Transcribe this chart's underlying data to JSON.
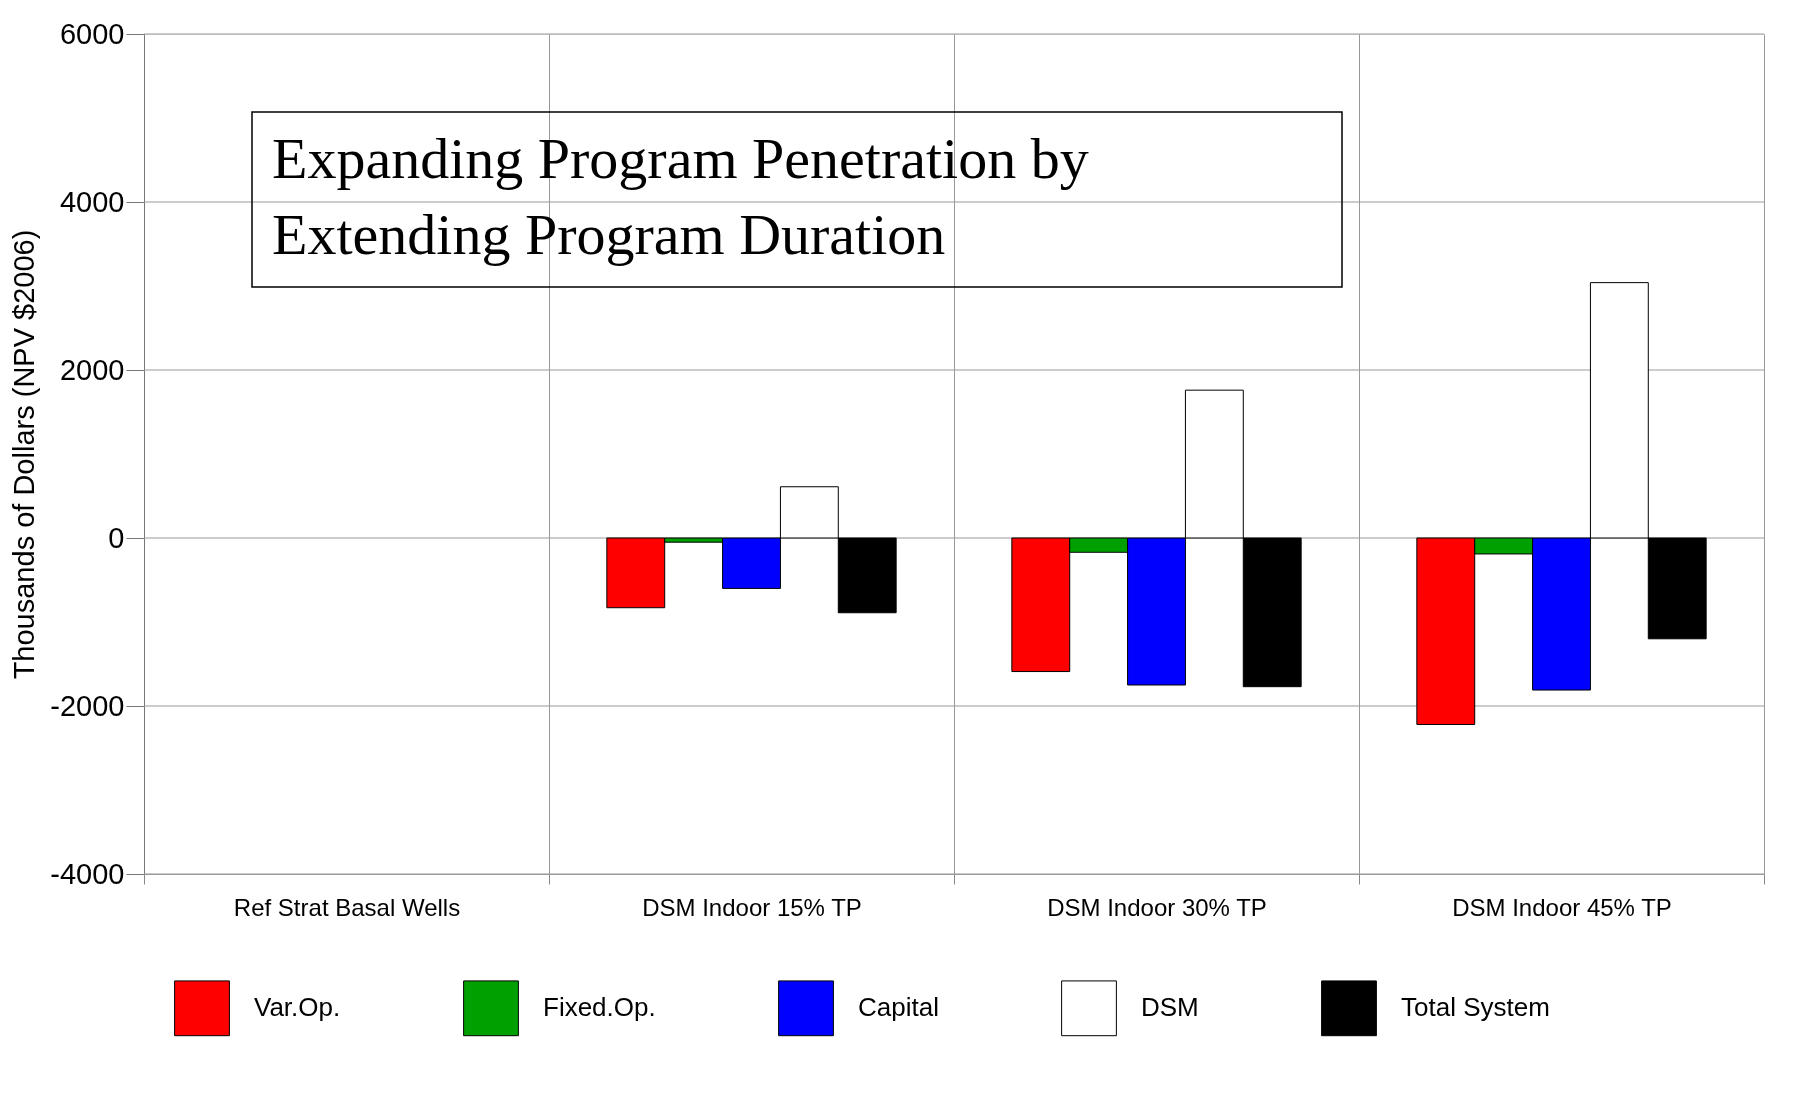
{
  "chart_data": {
    "type": "bar",
    "title": "Expanding Program Penetration by Extending Program Duration",
    "ylabel": "Thousands of Dollars (NPV $2006)",
    "categories": [
      "Ref Strat Basal Wells",
      "DSM Indoor 15% TP",
      "DSM Indoor 30% TP",
      "DSM Indoor 45% TP"
    ],
    "series": [
      {
        "name": "Var.Op.",
        "color": "#ff0000",
        "values": [
          null,
          -830,
          -1590,
          -2220
        ]
      },
      {
        "name": "Fixed.Op.",
        "color": "#00a000",
        "values": [
          null,
          -50,
          -170,
          -190
        ]
      },
      {
        "name": "Capital",
        "color": "#0000ff",
        "values": [
          null,
          -600,
          -1750,
          -1810
        ]
      },
      {
        "name": "DSM",
        "color": "#ffffff",
        "values": [
          null,
          610,
          1760,
          3040
        ]
      },
      {
        "name": "Total System",
        "color": "#000000",
        "values": [
          null,
          -890,
          -1770,
          -1200
        ]
      }
    ],
    "ylim": [
      -4000,
      6000
    ],
    "yticks": [
      -4000,
      -2000,
      0,
      2000,
      4000,
      6000
    ],
    "grid": true,
    "legend": "bottom"
  }
}
